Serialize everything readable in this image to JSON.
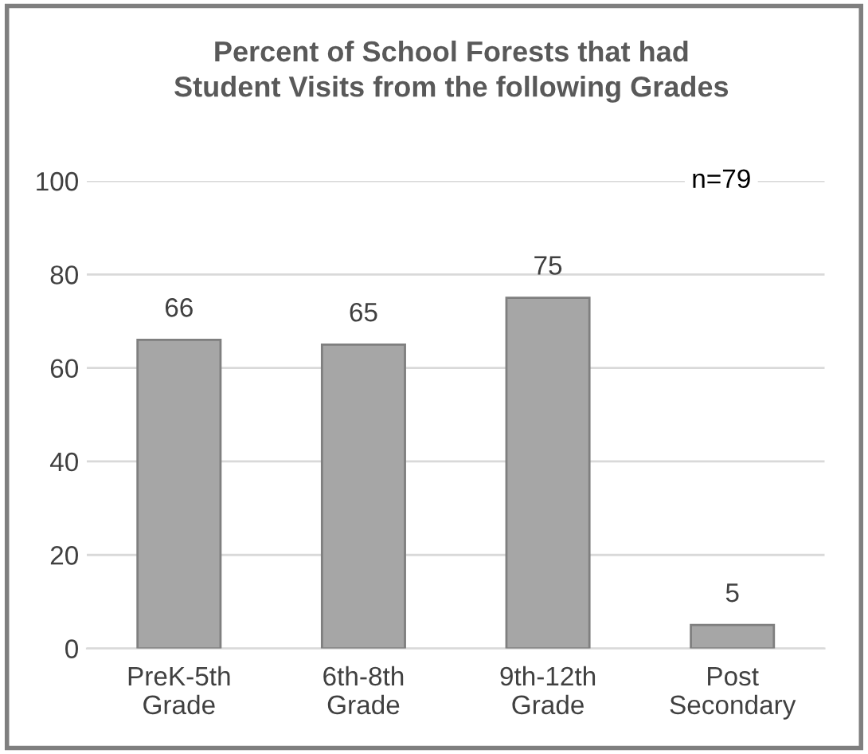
{
  "chart_data": {
    "type": "bar",
    "title": "Percent of School Forests that had\nStudent Visits from the following Grades",
    "categories": [
      "PreK-5th\nGrade",
      "6th-8th\nGrade",
      "9th-12th\nGrade",
      "Post\nSecondary"
    ],
    "values": [
      66,
      65,
      75,
      5
    ],
    "color": "#a6a6a6",
    "ylim": [
      0,
      100
    ],
    "yticks": [
      0,
      20,
      40,
      60,
      80,
      100
    ],
    "grid": "y",
    "data_labels": true,
    "annotations": [
      "n=79"
    ]
  }
}
